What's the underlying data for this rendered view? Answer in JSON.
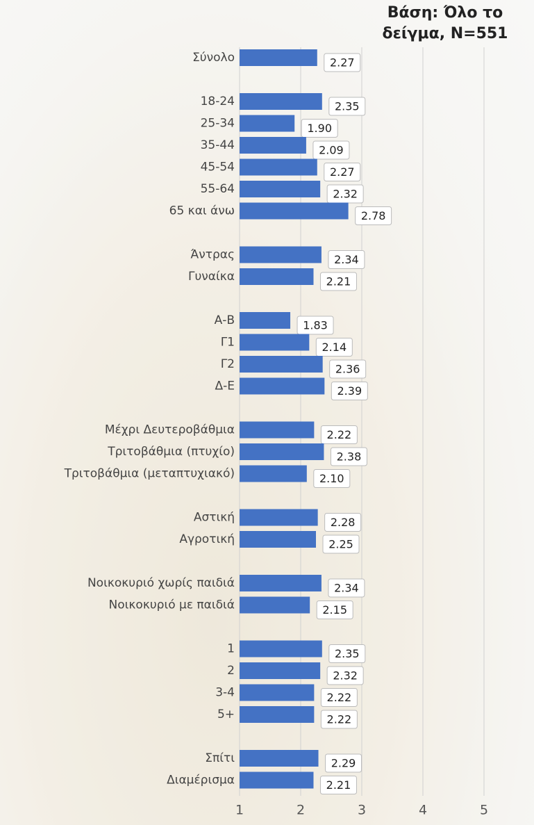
{
  "chart_data": {
    "type": "bar",
    "orientation": "horizontal",
    "title": "Βάση: Όλο το δείγμα, N=551",
    "categories": [
      "Σύνολο",
      null,
      "18-24",
      "25-34",
      "35-44",
      "45-54",
      "55-64",
      "65 και άνω",
      null,
      "Άντρας",
      "Γυναίκα",
      null,
      "Α-Β",
      "Γ1",
      "Γ2",
      "Δ-Ε",
      null,
      "Μέχρι Δευτεροβάθμια",
      "Τριτοβάθμια (πτυχίο)",
      "Τριτοβάθμια (μεταπτυχιακό)",
      null,
      "Αστική",
      "Αγροτική",
      null,
      "Νοικοκυριό χωρίς παιδιά",
      "Νοικοκυριό με παιδιά",
      null,
      "1",
      "2",
      "3-4",
      "5+",
      null,
      "Σπίτι",
      "Διαμέρισμα"
    ],
    "values": [
      2.27,
      null,
      2.35,
      1.9,
      2.09,
      2.27,
      2.32,
      2.78,
      null,
      2.34,
      2.21,
      null,
      1.83,
      2.14,
      2.36,
      2.39,
      null,
      2.22,
      2.38,
      2.1,
      null,
      2.28,
      2.25,
      null,
      2.34,
      2.15,
      null,
      2.35,
      2.32,
      2.22,
      2.22,
      null,
      2.29,
      2.21
    ],
    "value_labels": [
      "2.27",
      null,
      "2.35",
      "1.90",
      "2.09",
      "2.27",
      "2.32",
      "2.78",
      null,
      "2.34",
      "2.21",
      null,
      "1.83",
      "2.14",
      "2.36",
      "2.39",
      null,
      "2.22",
      "2.38",
      "2.10",
      null,
      "2.28",
      "2.25",
      null,
      "2.34",
      "2.15",
      null,
      "2.35",
      "2.32",
      "2.22",
      "2.22",
      null,
      "2.29",
      "2.21"
    ],
    "color": "#4472c4",
    "xlim": [
      1,
      5
    ],
    "xticks": [
      1,
      2,
      3,
      4,
      5
    ],
    "grid": true
  }
}
